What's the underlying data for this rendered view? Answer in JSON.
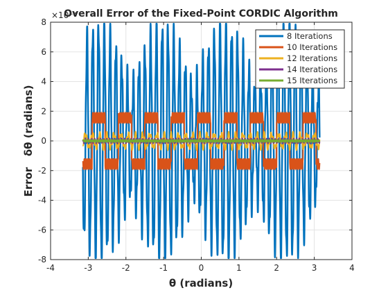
{
  "chart_data": {
    "type": "line",
    "title": "Overall Error of the Fixed-Point CORDIC Algorithm",
    "xlabel": "θ (radians)",
    "ylabel": "Error   δθ (radians)",
    "y_exponent": "×10⁻³",
    "xlim": [
      -4,
      4
    ],
    "ylim": [
      -8,
      8
    ],
    "x_ticks": [
      -4,
      -3,
      -2,
      -1,
      0,
      1,
      2,
      3,
      4
    ],
    "y_ticks": [
      -8,
      -6,
      -4,
      -2,
      0,
      2,
      4,
      6,
      8
    ],
    "y_unit_scale": 0.001,
    "grid": true,
    "legend_position": "top-right",
    "x_range": [
      -3.1416,
      3.1416
    ],
    "series": [
      {
        "name": "8 Iterations",
        "color": "#0072BD",
        "amplitude": 7.8,
        "period": 0.1536,
        "width": 2.5
      },
      {
        "name": "10 Iterations",
        "color": "#D95319",
        "amplitude": 1.9,
        "period": 0.7,
        "width": 2.0
      },
      {
        "name": "12 Iterations",
        "color": "#EDB120",
        "amplitude": 0.45,
        "period": 0.19,
        "width": 2.0
      },
      {
        "name": "14 Iterations",
        "color": "#7E2F8E",
        "amplitude": 0.12,
        "period": 0.08,
        "width": 2.0
      },
      {
        "name": "15 Iterations",
        "color": "#77AC30",
        "amplitude": 0.06,
        "period": 0.05,
        "width": 2.0
      }
    ]
  }
}
